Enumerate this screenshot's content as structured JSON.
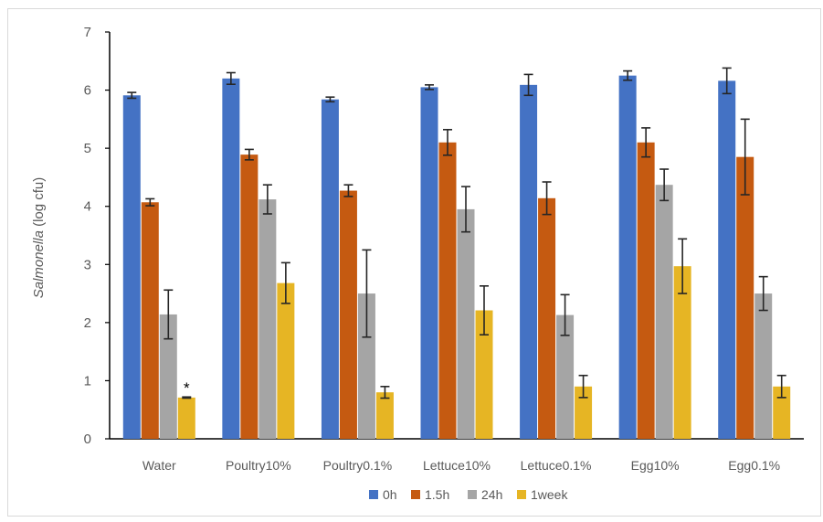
{
  "chart_data": {
    "type": "bar",
    "title": "",
    "xlabel": "",
    "ylabel_italic": "Salmonella",
    "ylabel_rest": " (log cfu)",
    "ylim": [
      0,
      7
    ],
    "yticks": [
      0,
      1,
      2,
      3,
      4,
      5,
      6,
      7
    ],
    "grid": false,
    "legend_position": "bottom",
    "categories": [
      "Water",
      "Poultry10%",
      "Poultry0.1%",
      "Lettuce10%",
      "Lettuce0.1%",
      "Egg10%",
      "Egg0.1%"
    ],
    "series": [
      {
        "name": "0h",
        "color": "#4472C4",
        "values": [
          5.91,
          6.2,
          5.84,
          6.05,
          6.09,
          6.25,
          6.16
        ],
        "errors": [
          0.05,
          0.1,
          0.04,
          0.04,
          0.18,
          0.08,
          0.22
        ]
      },
      {
        "name": "1.5h",
        "color": "#C55A11",
        "values": [
          4.07,
          4.89,
          4.27,
          5.1,
          4.14,
          5.1,
          4.85
        ],
        "errors": [
          0.06,
          0.09,
          0.1,
          0.22,
          0.28,
          0.25,
          0.65
        ]
      },
      {
        "name": "24h",
        "color": "#A5A5A5",
        "values": [
          2.14,
          4.12,
          2.5,
          3.95,
          2.13,
          4.37,
          2.5
        ],
        "errors": [
          0.42,
          0.25,
          0.75,
          0.39,
          0.35,
          0.27,
          0.29
        ]
      },
      {
        "name": "1week",
        "color": "#E6B524",
        "values": [
          0.71,
          2.68,
          0.8,
          2.21,
          0.9,
          2.97,
          0.9
        ],
        "errors": [
          0.01,
          0.35,
          0.1,
          0.42,
          0.19,
          0.47,
          0.19
        ]
      }
    ],
    "annotations": [
      {
        "text": "*",
        "category": "Water",
        "series": "1week"
      }
    ]
  }
}
